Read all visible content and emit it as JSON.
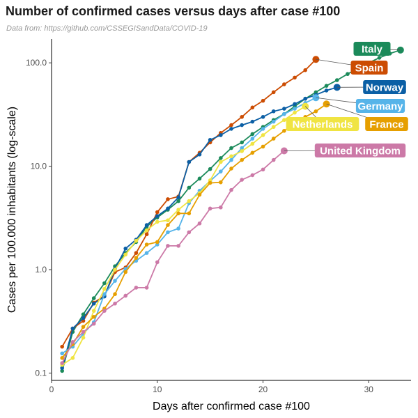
{
  "title": "Number of confirmed cases versus days after case #100",
  "subtitle": "Data from: https://github.com/CSSEGISandData/COVID-19",
  "chart_data": {
    "type": "line",
    "xlabel": "Days after confirmed case #100",
    "ylabel": "Cases per 100.000 inhabitants (log-scale)",
    "xlim": [
      0,
      34
    ],
    "ylim": [
      0.085,
      170
    ],
    "yscale": "log",
    "xticks": [
      0,
      10,
      20,
      30
    ],
    "yticks": [
      0.1,
      1.0,
      10.0,
      100.0
    ],
    "ytick_labels": [
      "0.1",
      "1.0",
      "10.0",
      "100.0"
    ],
    "grid": false,
    "legend": "direct labels at line ends",
    "series": [
      {
        "name": "Italy",
        "color": "#1b8a5a",
        "points": [
          [
            1,
            0.105
          ],
          [
            2,
            0.25
          ],
          [
            3,
            0.37
          ],
          [
            4,
            0.53
          ],
          [
            5,
            0.74
          ],
          [
            6,
            1.08
          ],
          [
            7,
            1.45
          ],
          [
            8,
            1.85
          ],
          [
            9,
            2.6
          ],
          [
            10,
            3.2
          ],
          [
            11,
            3.8
          ],
          [
            12,
            4.6
          ],
          [
            13,
            6.2
          ],
          [
            14,
            7.6
          ],
          [
            15,
            9.4
          ],
          [
            16,
            12.0
          ],
          [
            17,
            15.0
          ],
          [
            18,
            17.0
          ],
          [
            19,
            20.5
          ],
          [
            20,
            24.0
          ],
          [
            21,
            28.0
          ],
          [
            22,
            32.0
          ],
          [
            23,
            38.0
          ],
          [
            24,
            45.0
          ],
          [
            25,
            52.0
          ],
          [
            26,
            60.0
          ],
          [
            27,
            68.0
          ],
          [
            28,
            78.0
          ],
          [
            29,
            88.0
          ],
          [
            30,
            100.0
          ],
          [
            31,
            112.0
          ],
          [
            32,
            123.0
          ],
          [
            33,
            133.0
          ]
        ]
      },
      {
        "name": "Spain",
        "color": "#cc4c02",
        "points": [
          [
            1,
            0.18
          ],
          [
            2,
            0.27
          ],
          [
            3,
            0.32
          ],
          [
            4,
            0.48
          ],
          [
            5,
            0.56
          ],
          [
            6,
            0.95
          ],
          [
            7,
            1.05
          ],
          [
            8,
            1.45
          ],
          [
            9,
            2.2
          ],
          [
            10,
            3.6
          ],
          [
            11,
            4.8
          ],
          [
            12,
            5.1
          ],
          [
            13,
            11.0
          ],
          [
            14,
            13.5
          ],
          [
            15,
            17.0
          ],
          [
            16,
            21.0
          ],
          [
            17,
            25.0
          ],
          [
            18,
            30.0
          ],
          [
            19,
            37.0
          ],
          [
            20,
            43.0
          ],
          [
            21,
            52.0
          ],
          [
            22,
            62.0
          ],
          [
            23,
            72.0
          ],
          [
            24,
            85.0
          ],
          [
            25,
            108.0
          ]
        ]
      },
      {
        "name": "Norway",
        "color": "#0b5fa5",
        "points": [
          [
            1,
            0.112
          ],
          [
            2,
            0.27
          ],
          [
            3,
            0.34
          ],
          [
            4,
            0.47
          ],
          [
            5,
            0.55
          ],
          [
            6,
            1.02
          ],
          [
            7,
            1.6
          ],
          [
            8,
            1.95
          ],
          [
            9,
            2.7
          ],
          [
            10,
            3.3
          ],
          [
            11,
            3.9
          ],
          [
            12,
            5.0
          ],
          [
            13,
            11.0
          ],
          [
            14,
            13.0
          ],
          [
            15,
            18.0
          ],
          [
            16,
            20.0
          ],
          [
            17,
            23.0
          ],
          [
            18,
            25.0
          ],
          [
            19,
            27.0
          ],
          [
            20,
            30.0
          ],
          [
            21,
            34.0
          ],
          [
            22,
            36.0
          ],
          [
            23,
            40.0
          ],
          [
            24,
            45.0
          ],
          [
            25,
            49.0
          ],
          [
            26,
            54.0
          ],
          [
            27,
            58.0
          ]
        ]
      },
      {
        "name": "Germany",
        "color": "#56b4e9",
        "points": [
          [
            1,
            0.155
          ],
          [
            2,
            0.18
          ],
          [
            3,
            0.24
          ],
          [
            4,
            0.31
          ],
          [
            5,
            0.58
          ],
          [
            6,
            0.78
          ],
          [
            7,
            1.02
          ],
          [
            8,
            1.22
          ],
          [
            9,
            1.45
          ],
          [
            10,
            1.75
          ],
          [
            11,
            2.3
          ],
          [
            12,
            2.5
          ],
          [
            13,
            4.4
          ],
          [
            14,
            5.8
          ],
          [
            15,
            7.2
          ],
          [
            16,
            8.9
          ],
          [
            17,
            11.5
          ],
          [
            18,
            15.0
          ],
          [
            19,
            18.5
          ],
          [
            20,
            23.0
          ],
          [
            21,
            27.0
          ],
          [
            22,
            32.0
          ],
          [
            23,
            36.0
          ],
          [
            24,
            41.0
          ],
          [
            25,
            46.0
          ]
        ]
      },
      {
        "name": "Netherlands",
        "color": "#f0e442",
        "points": [
          [
            1,
            0.12
          ],
          [
            2,
            0.14
          ],
          [
            3,
            0.22
          ],
          [
            4,
            0.4
          ],
          [
            5,
            0.65
          ],
          [
            6,
            1.0
          ],
          [
            7,
            1.4
          ],
          [
            8,
            1.9
          ],
          [
            9,
            2.4
          ],
          [
            10,
            2.9
          ],
          [
            11,
            3.0
          ],
          [
            12,
            3.8
          ],
          [
            13,
            4.6
          ],
          [
            14,
            5.5
          ],
          [
            15,
            7.3
          ],
          [
            16,
            11.0
          ],
          [
            17,
            12.5
          ],
          [
            18,
            14.0
          ],
          [
            19,
            16.5
          ],
          [
            20,
            20.0
          ],
          [
            21,
            24.0
          ],
          [
            22,
            28.0
          ],
          [
            23,
            33.0
          ],
          [
            24,
            38.0
          ]
        ]
      },
      {
        "name": "France",
        "color": "#e69f00",
        "points": [
          [
            1,
            0.14
          ],
          [
            2,
            0.19
          ],
          [
            3,
            0.28
          ],
          [
            4,
            0.35
          ],
          [
            5,
            0.42
          ],
          [
            6,
            0.58
          ],
          [
            7,
            0.95
          ],
          [
            8,
            1.3
          ],
          [
            9,
            1.75
          ],
          [
            10,
            1.85
          ],
          [
            11,
            2.7
          ],
          [
            12,
            3.5
          ],
          [
            13,
            3.5
          ],
          [
            14,
            5.3
          ],
          [
            15,
            6.9
          ],
          [
            16,
            7.0
          ],
          [
            17,
            9.5
          ],
          [
            18,
            11.5
          ],
          [
            19,
            13.5
          ],
          [
            20,
            15.5
          ],
          [
            21,
            18.5
          ],
          [
            22,
            22.0
          ],
          [
            23,
            26.0
          ],
          [
            24,
            30.0
          ],
          [
            25,
            34.0
          ],
          [
            26,
            40.0
          ]
        ]
      },
      {
        "name": "United Kingdom",
        "color": "#cc79a7",
        "points": [
          [
            1,
            0.125
          ],
          [
            2,
            0.2
          ],
          [
            3,
            0.25
          ],
          [
            4,
            0.3
          ],
          [
            5,
            0.4
          ],
          [
            6,
            0.47
          ],
          [
            7,
            0.56
          ],
          [
            8,
            0.67
          ],
          [
            9,
            0.67
          ],
          [
            10,
            1.18
          ],
          [
            11,
            1.7
          ],
          [
            12,
            1.7
          ],
          [
            13,
            2.3
          ],
          [
            14,
            2.8
          ],
          [
            15,
            3.9
          ],
          [
            16,
            4.0
          ],
          [
            17,
            5.9
          ],
          [
            18,
            7.4
          ],
          [
            19,
            8.2
          ],
          [
            20,
            9.3
          ],
          [
            21,
            11.5
          ],
          [
            22,
            14.1
          ]
        ]
      }
    ]
  }
}
